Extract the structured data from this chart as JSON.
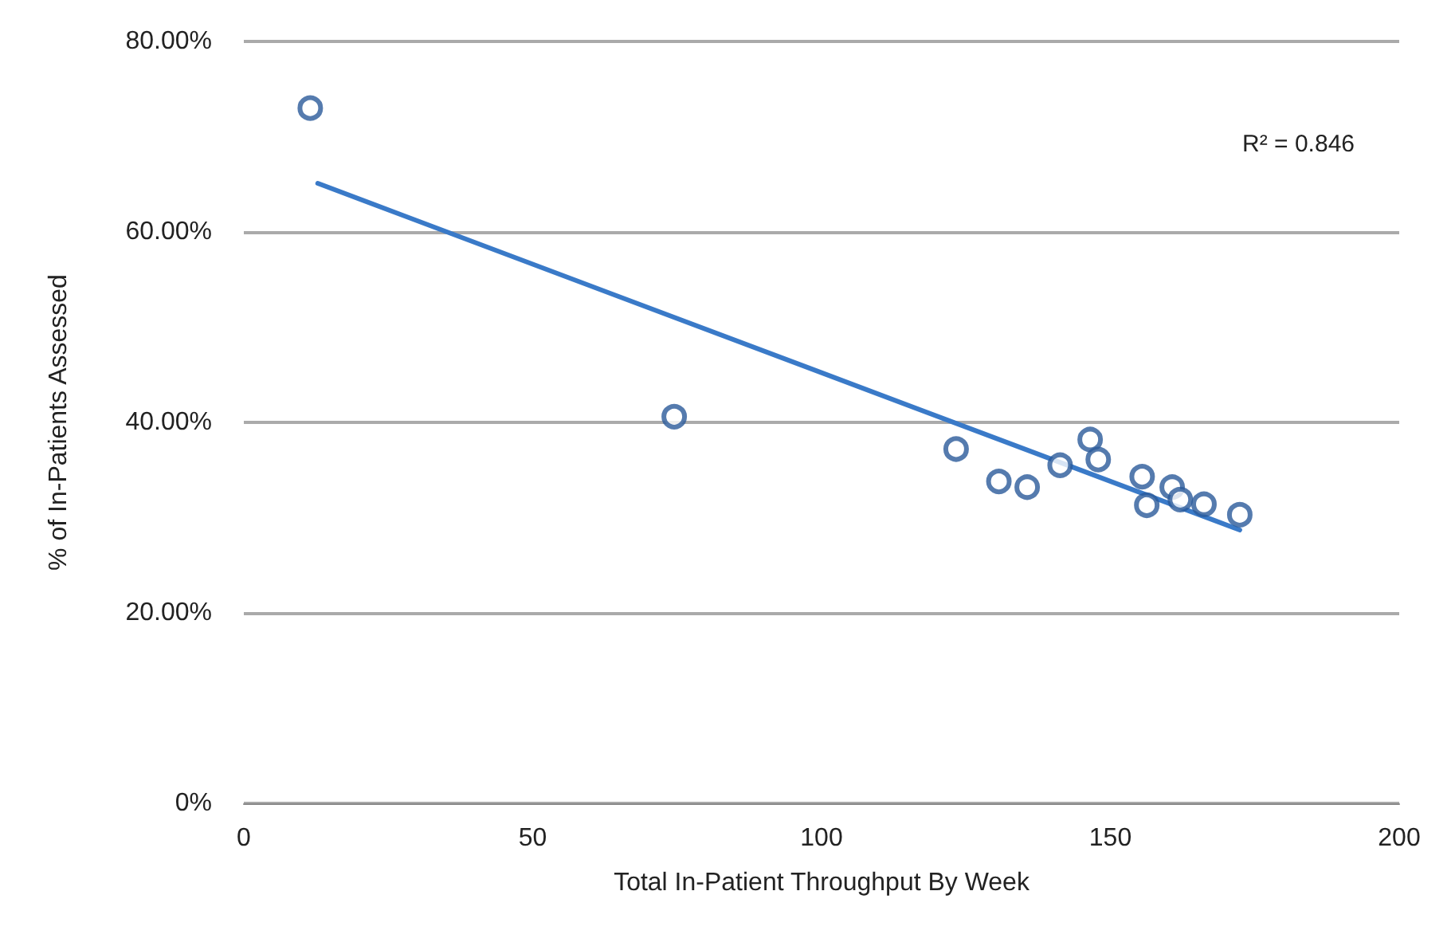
{
  "chart_data": {
    "type": "scatter",
    "xlabel": "Total In-Patient Throughput By Week",
    "ylabel": "% of In-Patients Assessed",
    "xlim": [
      0,
      200
    ],
    "xticks": [
      0,
      50,
      100,
      150,
      200
    ],
    "ylim": [
      0,
      80
    ],
    "yticks": [
      {
        "value": 0,
        "label": "0%"
      },
      {
        "value": 20,
        "label": "20.00%"
      },
      {
        "value": 40,
        "label": "40.00%"
      },
      {
        "value": 60,
        "label": "60.00%"
      },
      {
        "value": 80,
        "label": "80.00%"
      }
    ],
    "grid": "y",
    "marker": "circle",
    "annotations": [
      "R² = 0.846"
    ],
    "series": [
      {
        "color": "#2a5a9a",
        "x": [
          11.5,
          74.5,
          123.3,
          130.7,
          135.6,
          141.3,
          146.5,
          147.9,
          155.5,
          156.3,
          160.7,
          162.1,
          166.2,
          172.4
        ],
        "values": [
          73.0,
          40.6,
          37.2,
          33.8,
          33.2,
          35.5,
          38.2,
          36.1,
          34.3,
          31.3,
          33.2,
          31.9,
          31.4,
          30.3
        ]
      },
      {
        "type": "line",
        "color": "#3a7ac8",
        "line_style": "solid",
        "marker": "none",
        "x": [
          12.8,
          172.4
        ],
        "values": [
          65.1,
          28.7
        ]
      }
    ]
  }
}
